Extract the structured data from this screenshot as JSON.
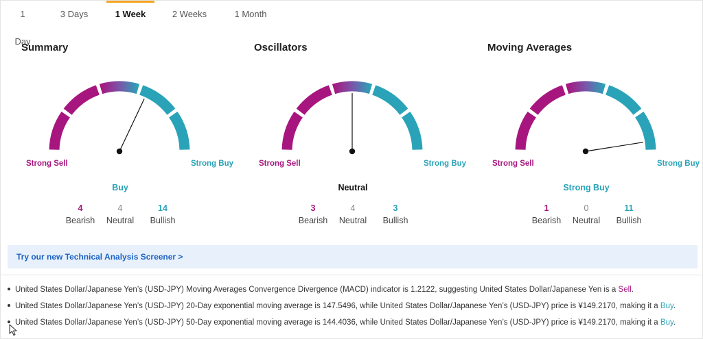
{
  "tabs": [
    {
      "label": "1 Day",
      "active": false
    },
    {
      "label": "3 Days",
      "active": false
    },
    {
      "label": "1 Week",
      "active": true
    },
    {
      "label": "2 Weeks",
      "active": false
    },
    {
      "label": "1 Month",
      "active": false
    }
  ],
  "gauge_labels": {
    "strong_sell": "Strong Sell",
    "strong_buy": "Strong Buy"
  },
  "count_labels": {
    "bearish": "Bearish",
    "neutral": "Neutral",
    "bullish": "Bullish"
  },
  "colors": {
    "sell": "#a7167f",
    "neutral": "#7a55a8",
    "buy": "#2aa3b8",
    "neutral_text": "#111111"
  },
  "gauges": [
    {
      "title": "Summary",
      "verdict": "Buy",
      "verdict_tone": "buy",
      "needle_value": 0.64,
      "bearish": "4",
      "neutral": "4",
      "bullish": "14"
    },
    {
      "title": "Oscillators",
      "verdict": "Neutral",
      "verdict_tone": "neutral",
      "needle_value": 0.5,
      "bearish": "3",
      "neutral": "4",
      "bullish": "3"
    },
    {
      "title": "Moving Averages",
      "verdict": "Strong Buy",
      "verdict_tone": "buy",
      "needle_value": 0.95,
      "bearish": "1",
      "neutral": "0",
      "bullish": "11"
    }
  ],
  "banner": {
    "label": "Try our new Technical Analysis Screener >"
  },
  "bullets": [
    {
      "text": "United States Dollar/Japanese Yen’s (USD-JPY) Moving Averages Convergence Divergence (MACD) indicator is 1.2122, suggesting United States Dollar/Japanese Yen is a ",
      "signal": "Sell",
      "tone": "sell"
    },
    {
      "text": "United States Dollar/Japanese Yen’s (USD-JPY) 20-Day exponential moving average is 147.5496, while United States Dollar/Japanese Yen’s (USD-JPY) price is ¥149.2170, making it a ",
      "signal": "Buy",
      "tone": "buy"
    },
    {
      "text": "United States Dollar/Japanese Yen’s (USD-JPY) 50-Day exponential moving average is 144.4036, while United States Dollar/Japanese Yen’s (USD-JPY) price is ¥149.2170, making it a ",
      "signal": "Buy",
      "tone": "buy"
    }
  ],
  "icons": {
    "cursor": "mouse-pointer-icon"
  }
}
